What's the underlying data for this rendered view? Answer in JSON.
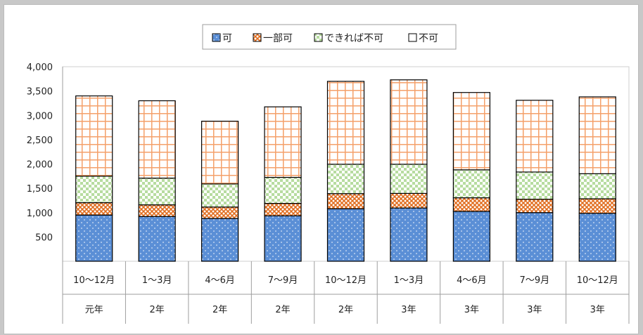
{
  "chart_data": {
    "type": "bar",
    "stacked": true,
    "categories": [
      {
        "period": "10〜12月",
        "year": "元年"
      },
      {
        "period": "1〜3月",
        "year": "2年"
      },
      {
        "period": "4〜6月",
        "year": "2年"
      },
      {
        "period": "7〜9月",
        "year": "2年"
      },
      {
        "period": "10〜12月",
        "year": "2年"
      },
      {
        "period": "1〜3月",
        "year": "3年"
      },
      {
        "period": "4〜6月",
        "year": "3年"
      },
      {
        "period": "7〜9月",
        "year": "3年"
      },
      {
        "period": "10〜12月",
        "year": "3年"
      }
    ],
    "series": [
      {
        "name": "可",
        "color": "#5b8fd6",
        "pattern": "dots",
        "values": [
          950,
          920,
          880,
          935,
          1080,
          1095,
          1025,
          1000,
          985
        ]
      },
      {
        "name": "一部可",
        "color": "#e0894a",
        "pattern": "cross-hatch",
        "values": [
          255,
          240,
          235,
          255,
          310,
          300,
          280,
          275,
          300
        ]
      },
      {
        "name": "できれば不可",
        "color": "#c6e0b4",
        "pattern": "check",
        "values": [
          545,
          550,
          475,
          535,
          605,
          600,
          575,
          560,
          515
        ]
      },
      {
        "name": "不可",
        "color": "#f4b183",
        "pattern": "grid",
        "values": [
          1650,
          1590,
          1290,
          1450,
          1705,
          1735,
          1590,
          1475,
          1580
        ]
      }
    ],
    "y_ticks": [
      "4,000",
      "3,500",
      "3,000",
      "2,500",
      "2,000",
      "1,500",
      "1,000",
      "500"
    ],
    "ylim": [
      0,
      4000
    ],
    "grid": false,
    "legend_position": "top-center",
    "title": "",
    "xlabel": "",
    "ylabel": ""
  }
}
